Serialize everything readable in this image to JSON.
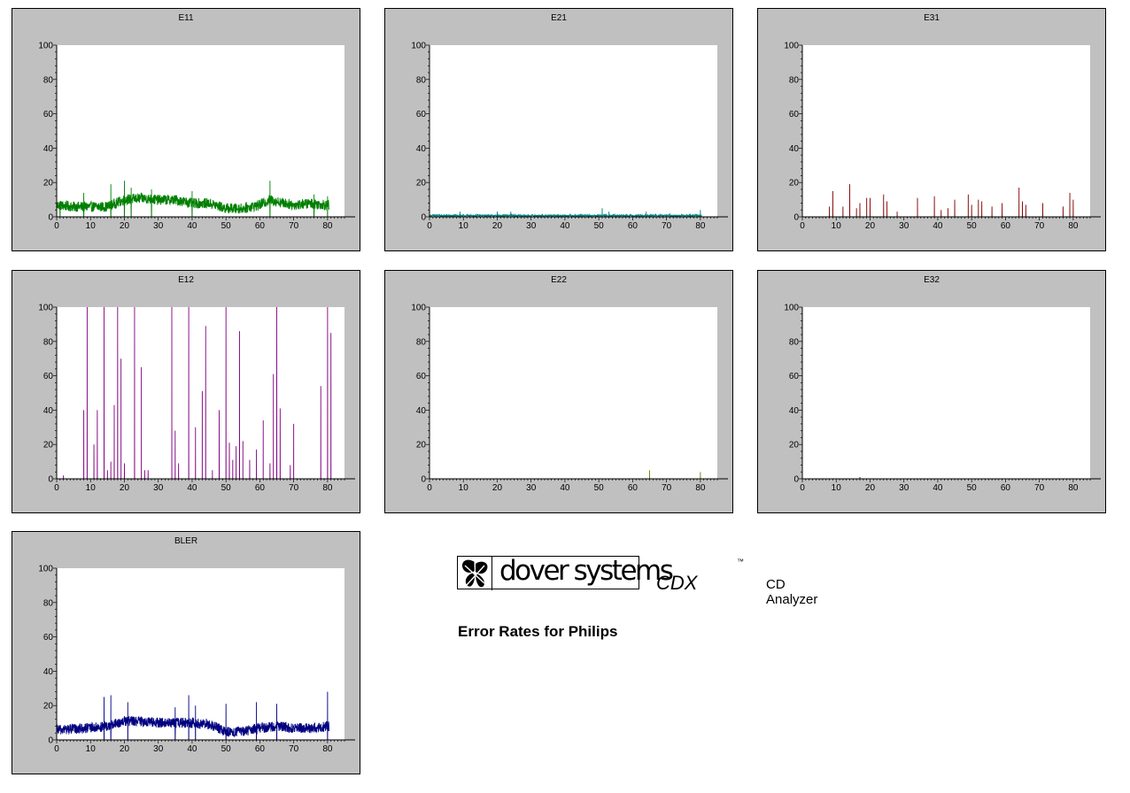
{
  "chart_data": [
    {
      "id": "E11",
      "title": "E11",
      "type": "line",
      "color": "#008000",
      "ylim": [
        0,
        100
      ],
      "xlim": [
        0,
        85
      ],
      "xticks": [
        0,
        10,
        20,
        30,
        40,
        50,
        60,
        70,
        80
      ],
      "yticks": [
        0,
        20,
        40,
        60,
        80,
        100
      ],
      "profile": [
        [
          0,
          6
        ],
        [
          5,
          5
        ],
        [
          10,
          5
        ],
        [
          15,
          5
        ],
        [
          20,
          9
        ],
        [
          25,
          10
        ],
        [
          30,
          9
        ],
        [
          35,
          9
        ],
        [
          40,
          7
        ],
        [
          45,
          7
        ],
        [
          50,
          4
        ],
        [
          55,
          4
        ],
        [
          60,
          6
        ],
        [
          63,
          9
        ],
        [
          65,
          8
        ],
        [
          70,
          6
        ],
        [
          75,
          7
        ],
        [
          80,
          6
        ]
      ],
      "peaks": [
        [
          1,
          9
        ],
        [
          8,
          14
        ],
        [
          16,
          19
        ],
        [
          20,
          21
        ],
        [
          22,
          17
        ],
        [
          28,
          16
        ],
        [
          40,
          15
        ],
        [
          63,
          21
        ],
        [
          76,
          13
        ],
        [
          80,
          12
        ]
      ],
      "amplitude": 6,
      "x_end": 80.5
    },
    {
      "id": "E21",
      "title": "E21",
      "type": "line",
      "color": "#008080",
      "ylim": [
        0,
        100
      ],
      "xlim": [
        0,
        85
      ],
      "xticks": [
        0,
        10,
        20,
        30,
        40,
        50,
        60,
        70,
        80
      ],
      "yticks": [
        0,
        20,
        40,
        60,
        80,
        100
      ],
      "profile": [
        [
          0,
          0.5
        ],
        [
          80,
          0.5
        ]
      ],
      "peaks": [
        [
          9,
          3
        ],
        [
          20,
          3
        ],
        [
          24,
          3
        ],
        [
          51,
          5
        ],
        [
          53,
          3
        ],
        [
          64,
          3
        ],
        [
          71,
          2
        ],
        [
          80,
          4
        ]
      ],
      "amplitude": 1.2,
      "x_end": 80.5
    },
    {
      "id": "E31",
      "title": "E31",
      "type": "line",
      "color": "#800000",
      "ylim": [
        0,
        100
      ],
      "xlim": [
        0,
        85
      ],
      "xticks": [
        0,
        10,
        20,
        30,
        40,
        50,
        60,
        70,
        80
      ],
      "yticks": [
        0,
        20,
        40,
        60,
        80,
        100
      ],
      "profile": [
        [
          0,
          0
        ],
        [
          80,
          0
        ]
      ],
      "peaks": [
        [
          8,
          6
        ],
        [
          9,
          15
        ],
        [
          12,
          6
        ],
        [
          14,
          19
        ],
        [
          16,
          5
        ],
        [
          17,
          8
        ],
        [
          19,
          11
        ],
        [
          20,
          11
        ],
        [
          24,
          13
        ],
        [
          25,
          9
        ],
        [
          28,
          3
        ],
        [
          34,
          11
        ],
        [
          39,
          12
        ],
        [
          41,
          4
        ],
        [
          43,
          5
        ],
        [
          45,
          10
        ],
        [
          49,
          13
        ],
        [
          50,
          7
        ],
        [
          52,
          10
        ],
        [
          53,
          9
        ],
        [
          56,
          6
        ],
        [
          59,
          8
        ],
        [
          64,
          17
        ],
        [
          65,
          9
        ],
        [
          66,
          7
        ],
        [
          71,
          8
        ],
        [
          77,
          6
        ],
        [
          79,
          14
        ],
        [
          80,
          10
        ]
      ],
      "amplitude": 0,
      "x_end": 80.5
    },
    {
      "id": "E12",
      "title": "E12",
      "type": "line",
      "color": "#800080",
      "ylim": [
        0,
        100
      ],
      "xlim": [
        0,
        85
      ],
      "xticks": [
        0,
        10,
        20,
        30,
        40,
        50,
        60,
        70,
        80
      ],
      "yticks": [
        0,
        20,
        40,
        60,
        80,
        100
      ],
      "profile": [
        [
          0,
          0
        ],
        [
          80,
          0
        ]
      ],
      "peaks": [
        [
          2,
          2
        ],
        [
          8,
          40
        ],
        [
          9,
          100
        ],
        [
          11,
          20
        ],
        [
          12,
          40
        ],
        [
          14,
          100
        ],
        [
          15,
          5
        ],
        [
          16,
          10
        ],
        [
          17,
          43
        ],
        [
          18,
          100
        ],
        [
          19,
          70
        ],
        [
          20,
          9
        ],
        [
          23,
          100
        ],
        [
          25,
          65
        ],
        [
          26,
          5
        ],
        [
          27,
          5
        ],
        [
          34,
          100
        ],
        [
          35,
          28
        ],
        [
          36,
          9
        ],
        [
          39,
          100
        ],
        [
          41,
          30
        ],
        [
          43,
          51
        ],
        [
          44,
          89
        ],
        [
          46,
          5
        ],
        [
          48,
          40
        ],
        [
          50,
          100
        ],
        [
          51,
          21
        ],
        [
          52,
          11
        ],
        [
          53,
          19
        ],
        [
          54,
          86
        ],
        [
          55,
          22
        ],
        [
          57,
          11
        ],
        [
          59,
          17
        ],
        [
          61,
          34
        ],
        [
          63,
          9
        ],
        [
          64,
          61
        ],
        [
          65,
          100
        ],
        [
          66,
          41
        ],
        [
          69,
          8
        ],
        [
          70,
          32
        ],
        [
          78,
          54
        ],
        [
          80,
          100
        ],
        [
          81,
          85
        ]
      ],
      "amplitude": 0,
      "x_end": 81
    },
    {
      "id": "E22",
      "title": "E22",
      "type": "line",
      "color": "#808000",
      "ylim": [
        0,
        100
      ],
      "xlim": [
        0,
        85
      ],
      "xticks": [
        0,
        10,
        20,
        30,
        40,
        50,
        60,
        70,
        80
      ],
      "yticks": [
        0,
        20,
        40,
        60,
        80,
        100
      ],
      "profile": [
        [
          0,
          0
        ],
        [
          80,
          0
        ]
      ],
      "peaks": [
        [
          65,
          5
        ],
        [
          80,
          4
        ]
      ],
      "amplitude": 0,
      "x_end": 80.5
    },
    {
      "id": "E32",
      "title": "E32",
      "type": "line",
      "color": "#800000",
      "ylim": [
        0,
        100
      ],
      "xlim": [
        0,
        85
      ],
      "xticks": [
        0,
        10,
        20,
        30,
        40,
        50,
        60,
        70,
        80
      ],
      "yticks": [
        0,
        20,
        40,
        60,
        80,
        100
      ],
      "profile": [
        [
          0,
          0
        ],
        [
          80,
          0
        ]
      ],
      "peaks": [
        [
          17,
          1
        ]
      ],
      "amplitude": 0,
      "x_end": 80.5
    },
    {
      "id": "BLER",
      "title": "BLER",
      "type": "line",
      "color": "#000080",
      "ylim": [
        0,
        100
      ],
      "xlim": [
        0,
        85
      ],
      "xticks": [
        0,
        10,
        20,
        30,
        40,
        50,
        60,
        70,
        80
      ],
      "yticks": [
        0,
        20,
        40,
        60,
        80,
        100
      ],
      "profile": [
        [
          0,
          5
        ],
        [
          10,
          6
        ],
        [
          15,
          7
        ],
        [
          20,
          10
        ],
        [
          25,
          10
        ],
        [
          30,
          9
        ],
        [
          40,
          9
        ],
        [
          45,
          8
        ],
        [
          50,
          4
        ],
        [
          55,
          4
        ],
        [
          60,
          6
        ],
        [
          65,
          7
        ],
        [
          70,
          6
        ],
        [
          75,
          6
        ],
        [
          80,
          7
        ]
      ],
      "peaks": [
        [
          14,
          25
        ],
        [
          16,
          26
        ],
        [
          21,
          22
        ],
        [
          35,
          19
        ],
        [
          39,
          26
        ],
        [
          41,
          20
        ],
        [
          50,
          21
        ],
        [
          59,
          22
        ],
        [
          65,
          21
        ],
        [
          80,
          28
        ]
      ],
      "amplitude": 6,
      "x_end": 80.5
    }
  ],
  "brand": {
    "logo_text": "dover systems",
    "product": "CDX",
    "tm": "™",
    "subtitle": "CD Analyzer"
  },
  "report_title": "Error Rates for Philips"
}
